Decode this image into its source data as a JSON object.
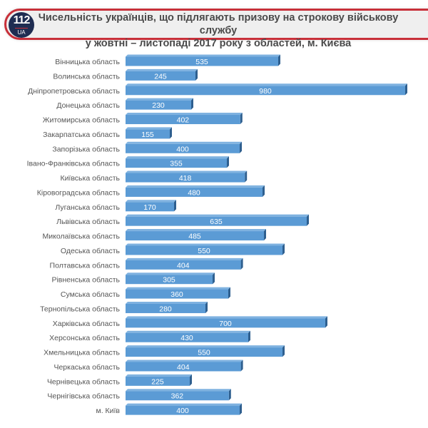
{
  "header": {
    "logo_number": "112",
    "logo_sub": "UA",
    "title_line1": "Чисельність українців, що підлягають призову на строкову військову службу",
    "title_line2": "у жовтні – листопаді 2017 року з областей, м. Києва"
  },
  "colors": {
    "bar": "#5b9bd5",
    "bar_top": "#7fb2e0",
    "bar_side": "#2e5f8f",
    "border": "#c8303a",
    "logo": "#1f2d52"
  },
  "chart_data": {
    "type": "bar",
    "orientation": "horizontal",
    "title": "Чисельність українців, що підлягають призову на строкову військову службу у жовтні – листопаді 2017 року з областей, м. Києва",
    "categories": [
      "Вінницька область",
      "Волинська область",
      "Дніпропетровська область",
      "Донецька область",
      "Житомирська  область",
      "Закарпатська область",
      "Запорізька область",
      "Івано-Франківська область",
      "Київська область",
      "Кіровоградська область",
      "Луганська область",
      "Львівська область",
      "Миколаївська область",
      "Одеська область",
      "Полтавська область",
      "Рівненська область",
      "Сумська область",
      "Тернопільська область",
      "Харківська область",
      "Херсонська область",
      "Хмельницька область",
      "Черкаська область",
      "Чернівецька область",
      "Чернігівська область",
      "м. Київ"
    ],
    "values": [
      535,
      245,
      980,
      230,
      402,
      155,
      400,
      355,
      418,
      480,
      170,
      635,
      485,
      550,
      404,
      305,
      360,
      280,
      700,
      430,
      550,
      404,
      225,
      362,
      400
    ],
    "xlim": [
      0,
      980
    ],
    "grid": false,
    "data_labels": true
  }
}
